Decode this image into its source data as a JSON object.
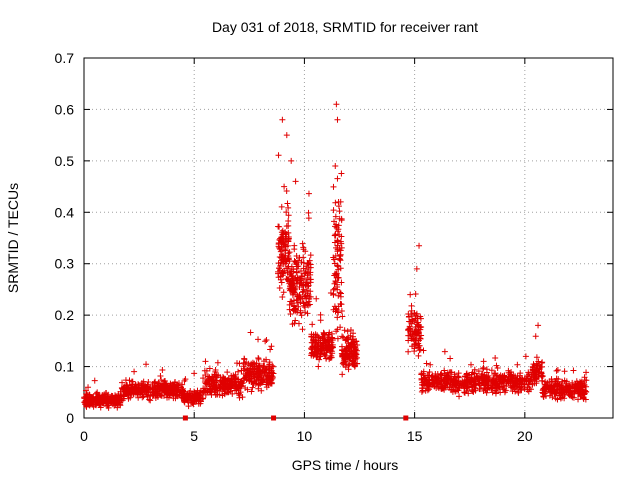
{
  "chart_data": {
    "type": "scatter",
    "title": "Day 031 of 2018, SRMTID for receiver rant",
    "xlabel": "GPS time / hours",
    "ylabel": "SRMTID / TECUs",
    "xlim": [
      0,
      24
    ],
    "ylim": [
      0,
      0.7
    ],
    "x_ticks": [
      0,
      5,
      10,
      15,
      20
    ],
    "y_ticks": [
      0,
      0.1,
      0.2,
      0.3,
      0.4,
      0.5,
      0.6,
      0.7
    ],
    "x_tick_labels": [
      "0",
      "5",
      "10",
      "15",
      "20"
    ],
    "y_tick_labels": [
      "0",
      "0.1",
      "0.2",
      "0.3",
      "0.4",
      "0.5",
      "0.6",
      "0.7"
    ],
    "grid": true,
    "marker": "+",
    "color": "#e00000",
    "gap_markers_x": [
      4.6,
      8.6,
      14.6
    ],
    "series": [
      {
        "name": "SRMTID",
        "segments": [
          {
            "x_start": 0.0,
            "x_end": 1.7,
            "base": 0.035,
            "spread": 0.018,
            "n": 220
          },
          {
            "x_start": 1.7,
            "x_end": 4.5,
            "base": 0.055,
            "spread": 0.025,
            "n": 320
          },
          {
            "x_start": 4.5,
            "x_end": 5.4,
            "base": 0.04,
            "spread": 0.02,
            "n": 100
          },
          {
            "x_start": 5.4,
            "x_end": 7.2,
            "base": 0.065,
            "spread": 0.03,
            "n": 220
          },
          {
            "x_start": 7.2,
            "x_end": 8.6,
            "base": 0.085,
            "spread": 0.04,
            "n": 180
          },
          {
            "x_start": 8.8,
            "x_end": 9.3,
            "base": 0.32,
            "spread": 0.12,
            "n": 110
          },
          {
            "x_start": 9.3,
            "x_end": 10.3,
            "base": 0.26,
            "spread": 0.1,
            "n": 180
          },
          {
            "x_start": 10.3,
            "x_end": 11.3,
            "base": 0.14,
            "spread": 0.05,
            "n": 160
          },
          {
            "x_start": 11.3,
            "x_end": 11.7,
            "base": 0.3,
            "spread": 0.2,
            "n": 90
          },
          {
            "x_start": 11.7,
            "x_end": 12.4,
            "base": 0.13,
            "spread": 0.05,
            "n": 130
          },
          {
            "x_start": 14.7,
            "x_end": 15.3,
            "base": 0.17,
            "spread": 0.06,
            "n": 90
          },
          {
            "x_start": 15.3,
            "x_end": 20.3,
            "base": 0.07,
            "spread": 0.03,
            "n": 520
          },
          {
            "x_start": 20.3,
            "x_end": 20.8,
            "base": 0.09,
            "spread": 0.04,
            "n": 60
          },
          {
            "x_start": 20.8,
            "x_end": 22.8,
            "base": 0.055,
            "spread": 0.025,
            "n": 220
          }
        ],
        "peaks": [
          {
            "x": 9.0,
            "y": 0.58
          },
          {
            "x": 9.2,
            "y": 0.55
          },
          {
            "x": 9.4,
            "y": 0.5
          },
          {
            "x": 9.6,
            "y": 0.46
          },
          {
            "x": 11.45,
            "y": 0.61
          },
          {
            "x": 11.5,
            "y": 0.58
          },
          {
            "x": 11.4,
            "y": 0.49
          },
          {
            "x": 11.55,
            "y": 0.42
          },
          {
            "x": 15.2,
            "y": 0.335
          },
          {
            "x": 15.1,
            "y": 0.29
          },
          {
            "x": 20.6,
            "y": 0.18
          },
          {
            "x": 14.8,
            "y": 0.24
          }
        ]
      }
    ]
  }
}
